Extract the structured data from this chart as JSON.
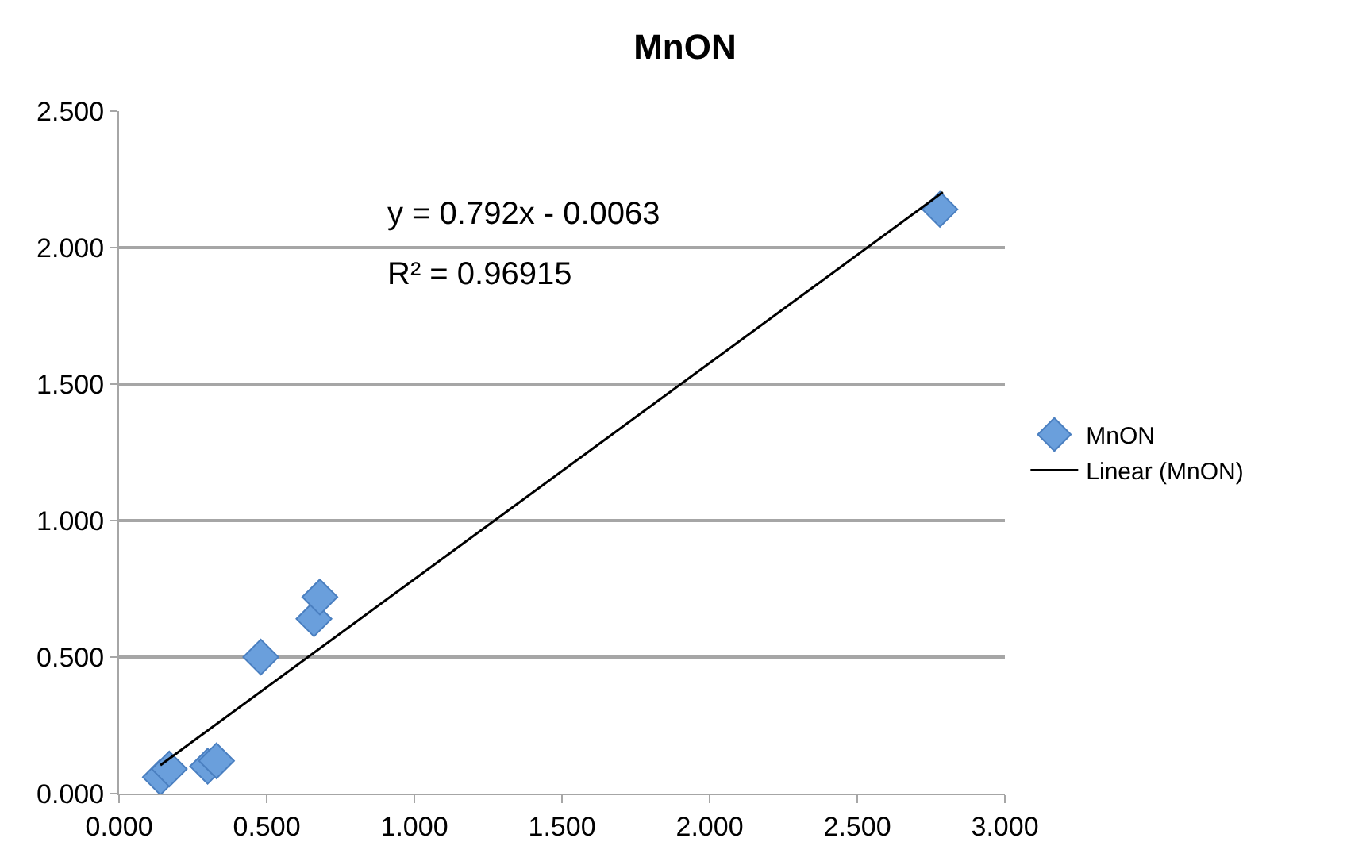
{
  "chart_data": {
    "type": "scatter",
    "title": "MnON",
    "marker": "diamond",
    "grid": "y",
    "legend": "right",
    "xlim": [
      0,
      3
    ],
    "xticks": [
      {
        "value": 0,
        "label": "0.000"
      },
      {
        "value": 0.5,
        "label": "0.500"
      },
      {
        "value": 1,
        "label": "1.000"
      },
      {
        "value": 1.5,
        "label": "1.500"
      },
      {
        "value": 2,
        "label": "2.000"
      },
      {
        "value": 2.5,
        "label": "2.500"
      },
      {
        "value": 3,
        "label": "3.000"
      }
    ],
    "ylim": [
      0,
      2.5
    ],
    "yticks": [
      {
        "value": 0,
        "label": "0.000"
      },
      {
        "value": 0.5,
        "label": "0.500"
      },
      {
        "value": 1,
        "label": "1.000"
      },
      {
        "value": 1.5,
        "label": "1.500"
      },
      {
        "value": 2,
        "label": "2.000"
      },
      {
        "value": 2.5,
        "label": "2.500"
      }
    ],
    "series": [
      {
        "name": "MnON",
        "color": "#6a9fdc",
        "x": [
          0.14,
          0.17,
          0.3,
          0.33,
          0.48,
          0.66,
          0.68,
          2.78
        ],
        "values": [
          0.06,
          0.09,
          0.1,
          0.12,
          0.5,
          0.64,
          0.72,
          2.14
        ]
      },
      {
        "name": "Linear (MnON)",
        "type": "line",
        "color": "#000000",
        "marker": "none",
        "x": [
          0.14,
          2.79
        ],
        "values": [
          0.104,
          2.203
        ]
      }
    ],
    "annotations": [
      "y = 0.792x - 0.0063",
      "R² = 0.96915"
    ]
  }
}
